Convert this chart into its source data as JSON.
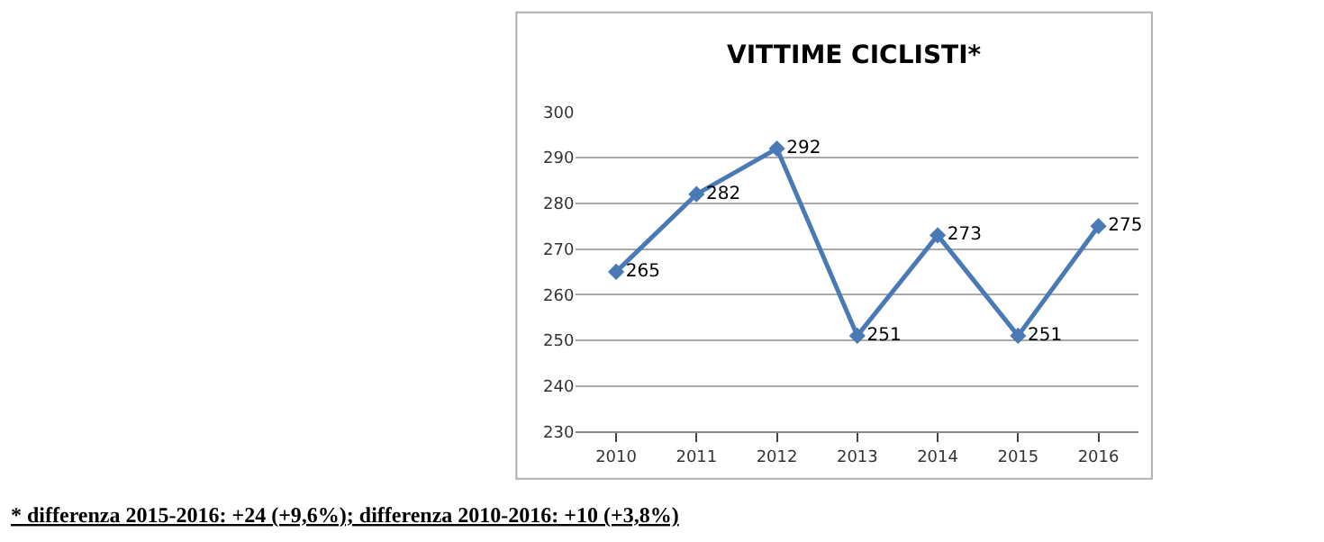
{
  "chart_data": {
    "type": "line",
    "title": "VITTIME CICLISTI*",
    "categories": [
      "2010",
      "2011",
      "2012",
      "2013",
      "2014",
      "2015",
      "2016"
    ],
    "series": [
      {
        "color": "#4a7ab5",
        "values": [
          265,
          282,
          292,
          251,
          273,
          251,
          275
        ]
      }
    ],
    "ylim": [
      230,
      300
    ],
    "yticks": [
      230,
      240,
      250,
      260,
      270,
      280,
      290,
      300
    ],
    "grid": "y",
    "marker": "diamond",
    "line_style": "solid",
    "data_labels": true,
    "legend": false,
    "annotations": [
      "* differenza 2015-2016: +24 (+9,6%); differenza 2010-2016: +10 (+3,8%)"
    ]
  }
}
